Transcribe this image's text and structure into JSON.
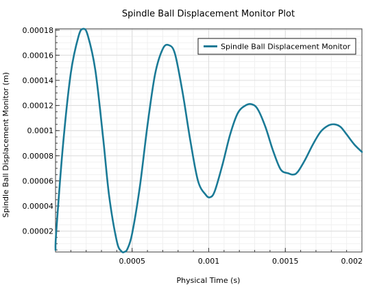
{
  "chart_data": {
    "type": "line",
    "title": "Spindle Ball Displacement Monitor Plot",
    "xlabel": "Physical Time (s)",
    "ylabel": "Spindle Ball Displacement Monitor (m)",
    "xlim": [
      0,
      0.002
    ],
    "ylim": [
      3.4e-06,
      0.000181
    ],
    "grid": true,
    "legend_position": "top-right",
    "x_ticks": [
      {
        "value": 0.0005,
        "label": "0.0005"
      },
      {
        "value": 0.001,
        "label": "0.001"
      },
      {
        "value": 0.0015,
        "label": "0.0015"
      },
      {
        "value": 0.002,
        "label": "0.002"
      }
    ],
    "y_ticks": [
      {
        "value": 2e-05,
        "label": "0.00002"
      },
      {
        "value": 4e-05,
        "label": "0.00004"
      },
      {
        "value": 6e-05,
        "label": "0.00006"
      },
      {
        "value": 8e-05,
        "label": "0.00008"
      },
      {
        "value": 0.0001,
        "label": "0.0001"
      },
      {
        "value": 0.00012,
        "label": "0.00012"
      },
      {
        "value": 0.00014,
        "label": "0.00014"
      },
      {
        "value": 0.00016,
        "label": "0.00016"
      },
      {
        "value": 0.00018,
        "label": "0.00018"
      }
    ],
    "series": [
      {
        "name": "Spindle Ball Displacement Monitor",
        "color": "#1a7a96",
        "x": [
          0,
          5e-06,
          5e-05,
          0.0001,
          0.00015,
          0.00018,
          0.00021,
          0.00026,
          0.00031,
          0.00035,
          0.0004,
          0.00043,
          0.00045,
          0.00047,
          0.0005,
          0.00055,
          0.0006,
          0.00065,
          0.0007,
          0.00074,
          0.00078,
          0.00083,
          0.00088,
          0.00093,
          0.00098,
          0.00101,
          0.00104,
          0.00109,
          0.00114,
          0.00119,
          0.00124,
          0.00128,
          0.00132,
          0.00137,
          0.00142,
          0.00147,
          0.00152,
          0.00155,
          0.00158,
          0.00163,
          0.00168,
          0.00173,
          0.00178,
          0.00182,
          0.00186,
          0.0019,
          0.00195,
          0.002
        ],
        "y": [
          5e-06,
          2e-05,
          9e-05,
          0.000146,
          0.000175,
          0.000181,
          0.000176,
          0.000148,
          9.5e-05,
          4.8e-05,
          1.2e-05,
          4e-06,
          3.5e-06,
          6e-06,
          1.8e-05,
          5.5e-05,
          0.000104,
          0.000145,
          0.000165,
          0.000168,
          0.000161,
          0.00013,
          9.2e-05,
          6e-05,
          4.9e-05,
          4.7e-05,
          5.2e-05,
          7.3e-05,
          9.7e-05,
          0.000114,
          0.00012,
          0.000121,
          0.000117,
          0.000103,
          8.4e-05,
          6.9e-05,
          6.6e-05,
          6.5e-05,
          6.7e-05,
          7.7e-05,
          8.9e-05,
          9.9e-05,
          0.000104,
          0.000105,
          0.000103,
          9.7e-05,
          8.9e-05,
          8.3e-05
        ]
      }
    ]
  }
}
